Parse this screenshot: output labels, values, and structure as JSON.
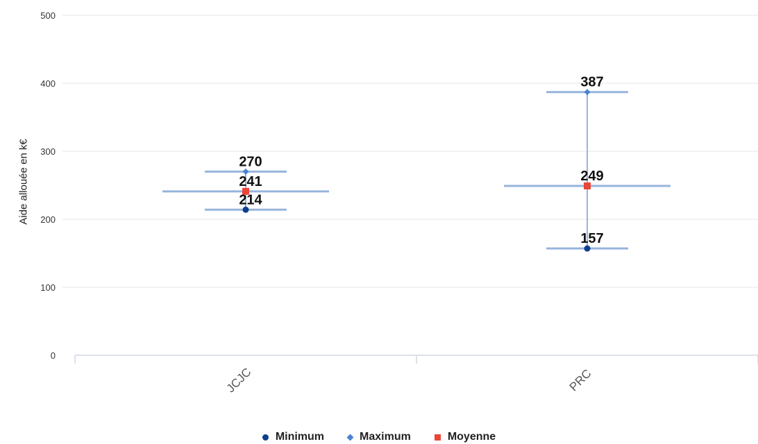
{
  "chart_data": {
    "type": "scatter",
    "ylabel": "Aide allouée en k€",
    "xlabel": "",
    "ylim": [
      0,
      500
    ],
    "yticks": [
      0,
      100,
      200,
      300,
      400,
      500
    ],
    "categories": [
      "JCJC",
      "PRC"
    ],
    "series": [
      {
        "name": "Minimum",
        "values": [
          214,
          157
        ],
        "color": "#0d3f8c",
        "symbol": "circle"
      },
      {
        "name": "Maximum",
        "values": [
          270,
          387
        ],
        "color": "#4a83d1",
        "symbol": "diamond"
      },
      {
        "name": "Moyenne",
        "values": [
          241,
          249
        ],
        "color": "#ea4637",
        "symbol": "square"
      }
    ],
    "grid": true,
    "legend_position": "bottom"
  },
  "legend": {
    "items": [
      {
        "label": "Minimum",
        "icon": "circle-icon"
      },
      {
        "label": "Maximum",
        "icon": "diamond-icon"
      },
      {
        "label": "Moyenne",
        "icon": "square-icon"
      }
    ]
  }
}
